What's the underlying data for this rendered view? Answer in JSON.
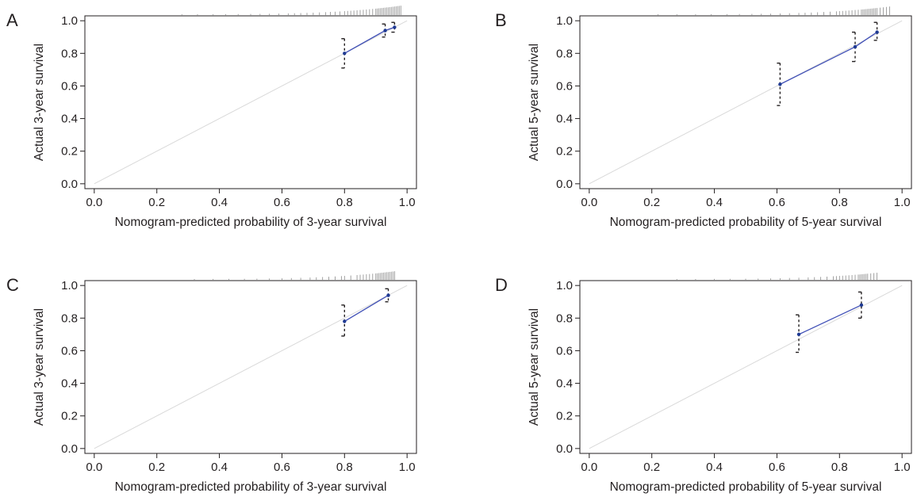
{
  "chart_data": [
    {
      "panel": "A",
      "type": "scatter",
      "xlabel": "Nomogram-predicted probability of 3-year survival",
      "ylabel": "Actual 3-year survival",
      "xlim": [
        -0.03,
        1.03
      ],
      "ylim": [
        -0.03,
        1.03
      ],
      "xticks": [
        "0.0",
        "0.2",
        "0.4",
        "0.6",
        "0.8",
        "1.0"
      ],
      "yticks": [
        "0.0",
        "0.2",
        "0.4",
        "0.6",
        "0.8",
        "1.0"
      ],
      "grid": false,
      "series": [
        {
          "points": [
            {
              "x": 0.8,
              "y": 0.8,
              "lower": 0.71,
              "upper": 0.89
            },
            {
              "x": 0.93,
              "y": 0.94,
              "lower": 0.9,
              "upper": 0.98
            },
            {
              "x": 0.96,
              "y": 0.96,
              "lower": 0.93,
              "upper": 0.99
            }
          ]
        }
      ],
      "ideal_line": [
        [
          0,
          0
        ],
        [
          1,
          1
        ]
      ],
      "predicted_distribution": [
        0.28,
        0.33,
        0.38,
        0.42,
        0.46,
        0.5,
        0.53,
        0.56,
        0.59,
        0.62,
        0.64,
        0.66,
        0.68,
        0.7,
        0.72,
        0.74,
        0.755,
        0.77,
        0.785,
        0.8,
        0.81,
        0.82,
        0.83,
        0.84,
        0.85,
        0.86,
        0.87,
        0.88,
        0.89,
        0.9,
        0.905,
        0.91,
        0.915,
        0.92,
        0.925,
        0.93,
        0.935,
        0.94,
        0.945,
        0.95,
        0.955,
        0.96,
        0.965,
        0.97,
        0.975,
        0.98
      ],
      "colors": {
        "calibration": "#3f4fb6",
        "ideal": "#d9d9d9",
        "error_bar": "#231f20"
      }
    },
    {
      "panel": "B",
      "type": "scatter",
      "xlabel": "Nomogram-predicted probability of 5-year survival",
      "ylabel": "Actual 5-year survival",
      "xlim": [
        -0.03,
        1.03
      ],
      "ylim": [
        -0.03,
        1.03
      ],
      "xticks": [
        "0.0",
        "0.2",
        "0.4",
        "0.6",
        "0.8",
        "1.0"
      ],
      "yticks": [
        "0.0",
        "0.2",
        "0.4",
        "0.6",
        "0.8",
        "1.0"
      ],
      "grid": false,
      "series": [
        {
          "points": [
            {
              "x": 0.61,
              "y": 0.61,
              "lower": 0.48,
              "upper": 0.74
            },
            {
              "x": 0.85,
              "y": 0.84,
              "lower": 0.75,
              "upper": 0.93
            },
            {
              "x": 0.92,
              "y": 0.93,
              "lower": 0.88,
              "upper": 0.99
            }
          ]
        }
      ],
      "ideal_line": [
        [
          0,
          0
        ],
        [
          1,
          1
        ]
      ],
      "predicted_distribution": [
        0.22,
        0.28,
        0.34,
        0.39,
        0.44,
        0.48,
        0.52,
        0.55,
        0.58,
        0.61,
        0.64,
        0.67,
        0.69,
        0.71,
        0.73,
        0.75,
        0.77,
        0.79,
        0.8,
        0.81,
        0.82,
        0.83,
        0.84,
        0.85,
        0.86,
        0.87,
        0.875,
        0.88,
        0.885,
        0.89,
        0.895,
        0.9,
        0.905,
        0.91,
        0.915,
        0.92,
        0.93,
        0.94,
        0.95,
        0.96
      ],
      "colors": {
        "calibration": "#3f4fb6",
        "ideal": "#d9d9d9",
        "error_bar": "#231f20"
      }
    },
    {
      "panel": "C",
      "type": "scatter",
      "xlabel": "Nomogram-predicted probability of 3-year survival",
      "ylabel": "Actual 3-year survival",
      "xlim": [
        -0.03,
        1.03
      ],
      "ylim": [
        -0.03,
        1.03
      ],
      "xticks": [
        "0.0",
        "0.2",
        "0.4",
        "0.6",
        "0.8",
        "1.0"
      ],
      "yticks": [
        "0.0",
        "0.2",
        "0.4",
        "0.6",
        "0.8",
        "1.0"
      ],
      "grid": false,
      "series": [
        {
          "points": [
            {
              "x": 0.8,
              "y": 0.78,
              "lower": 0.69,
              "upper": 0.88
            },
            {
              "x": 0.94,
              "y": 0.94,
              "lower": 0.9,
              "upper": 0.98
            }
          ]
        }
      ],
      "ideal_line": [
        [
          0,
          0
        ],
        [
          1,
          1
        ]
      ],
      "predicted_distribution": [
        0.32,
        0.38,
        0.43,
        0.48,
        0.52,
        0.56,
        0.6,
        0.63,
        0.66,
        0.69,
        0.71,
        0.73,
        0.75,
        0.77,
        0.79,
        0.8,
        0.82,
        0.84,
        0.85,
        0.86,
        0.87,
        0.88,
        0.89,
        0.9,
        0.905,
        0.91,
        0.915,
        0.92,
        0.925,
        0.93,
        0.935,
        0.94,
        0.945,
        0.95,
        0.955,
        0.96
      ],
      "colors": {
        "calibration": "#3f4fb6",
        "ideal": "#d9d9d9",
        "error_bar": "#231f20"
      }
    },
    {
      "panel": "D",
      "type": "scatter",
      "xlabel": "Nomogram-predicted probability of 5-year survival",
      "ylabel": "Actual 5-year survival",
      "xlim": [
        -0.03,
        1.03
      ],
      "ylim": [
        -0.03,
        1.03
      ],
      "xticks": [
        "0.0",
        "0.2",
        "0.4",
        "0.6",
        "0.8",
        "1.0"
      ],
      "yticks": [
        "0.0",
        "0.2",
        "0.4",
        "0.6",
        "0.8",
        "1.0"
      ],
      "grid": false,
      "series": [
        {
          "points": [
            {
              "x": 0.67,
              "y": 0.7,
              "lower": 0.59,
              "upper": 0.82
            },
            {
              "x": 0.87,
              "y": 0.88,
              "lower": 0.8,
              "upper": 0.96
            }
          ]
        }
      ],
      "ideal_line": [
        [
          0,
          0
        ],
        [
          1,
          1
        ]
      ],
      "predicted_distribution": [
        0.28,
        0.34,
        0.4,
        0.45,
        0.5,
        0.54,
        0.58,
        0.61,
        0.64,
        0.67,
        0.7,
        0.72,
        0.74,
        0.76,
        0.78,
        0.79,
        0.8,
        0.81,
        0.82,
        0.83,
        0.84,
        0.85,
        0.86,
        0.865,
        0.87,
        0.875,
        0.88,
        0.885,
        0.89,
        0.9,
        0.91,
        0.92
      ],
      "colors": {
        "calibration": "#3f4fb6",
        "ideal": "#d9d9d9",
        "error_bar": "#231f20"
      }
    }
  ]
}
